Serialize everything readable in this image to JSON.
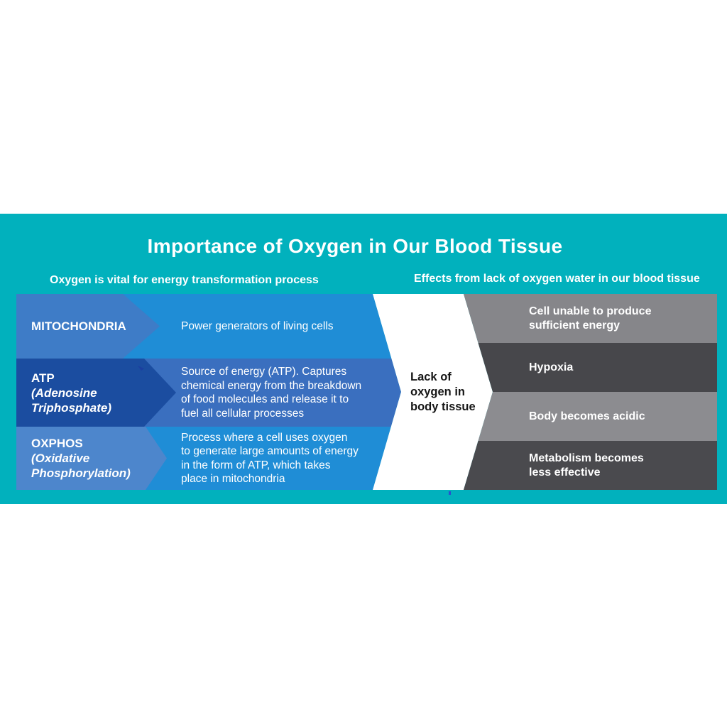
{
  "title": "Importance of Oxygen in Our Blood Tissue",
  "left_section": {
    "heading": "Oxygen is vital for energy transformation process",
    "rows": [
      {
        "term": "MITOCHONDRIA",
        "term_sub": "",
        "description": "Power generators of living cells"
      },
      {
        "term": "ATP",
        "term_sub": "(Adenosine\nTriphosphate)",
        "description": "Source of energy (ATP). Captures\nchemical energy from the breakdown\nof food molecules and release it to\nfuel all cellular processes"
      },
      {
        "term": "OXPHOS",
        "term_sub": "(Oxidative\nPhosphorylation)",
        "description": "Process where a  cell uses oxygen\nto generate large amounts of energy\nin the form of ATP, which takes\nplace in mitochondria"
      }
    ]
  },
  "center": {
    "label": "Lack of\noxygen in\nbody tissue"
  },
  "right_section": {
    "heading": "Effects from lack of oxygen water in our blood tissue",
    "effects": [
      "Cell unable to produce\nsufficient energy",
      "Hypoxia",
      "Body becomes acidic",
      "Metabolism becomes\nless effective"
    ]
  },
  "colors": {
    "page_background": "#ffffff",
    "band_teal": "#01b1bd",
    "row1_label_blue": "#3e7cc7",
    "row1_desc_blue": "#1f8dd6",
    "row2_label_blue": "#1b4da0",
    "row2_desc_blue": "#3a6fbf",
    "row3_label_blue": "#4d86cc",
    "row3_desc_blue": "#1f8dd6",
    "effect_light_gray": "#86868a",
    "effect_dark_gray": "#47474b",
    "arrow_white": "#ffffff",
    "center_text_black": "#161616",
    "text_white": "#ffffff"
  }
}
